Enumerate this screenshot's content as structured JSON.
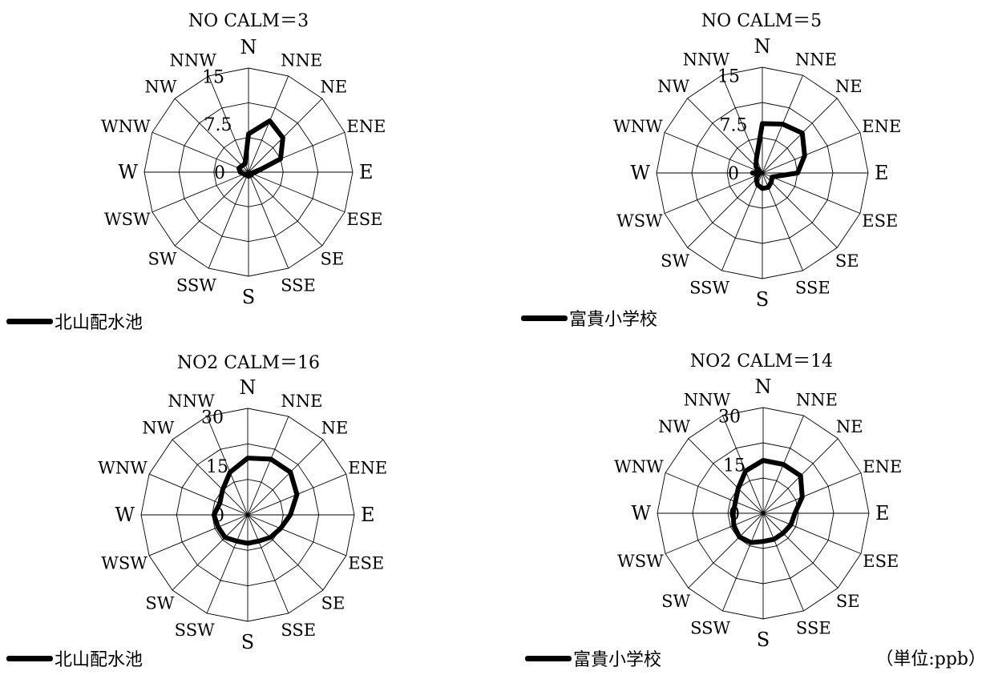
{
  "unit_label": "（単位:ppb）",
  "chart_data": [
    {
      "type": "radar",
      "title": "NO  CALM＝3",
      "legend": "北山配水池",
      "directions": [
        "N",
        "NNE",
        "NE",
        "ENE",
        "E",
        "ESE",
        "SE",
        "SSE",
        "S",
        "SSW",
        "SW",
        "WSW",
        "W",
        "WNW",
        "NW",
        "NNW"
      ],
      "ticks": [
        "0",
        "7.5",
        "15"
      ],
      "rmax": 15,
      "series": [
        {
          "name": "北山配水池",
          "values": [
            5.5,
            8.0,
            7.0,
            5.0,
            1.0,
            0.5,
            0.6,
            0.5,
            0.6,
            0.5,
            0.6,
            0.7,
            1.2,
            1.5,
            1.3,
            1.3
          ]
        }
      ]
    },
    {
      "type": "radar",
      "title": "NO  CALM＝5",
      "legend": "富貴小学校",
      "directions": [
        "N",
        "NNE",
        "NE",
        "ENE",
        "E",
        "ESE",
        "SE",
        "SSE",
        "S",
        "SSW",
        "SW",
        "WSW",
        "W",
        "WNW",
        "NW",
        "NNW"
      ],
      "ticks": [
        "0",
        "7.5",
        "15"
      ],
      "rmax": 15,
      "series": [
        {
          "name": "富貴小学校",
          "values": [
            7.0,
            7.5,
            8.0,
            6.5,
            5.0,
            1.5,
            1.8,
            2.2,
            2.2,
            1.8,
            1.2,
            0.6,
            1.4,
            0.4,
            1.3,
            2.2
          ]
        }
      ]
    },
    {
      "type": "radar",
      "title": "NO2  CALM＝16",
      "legend": "北山配水池",
      "directions": [
        "N",
        "NNE",
        "NE",
        "ENE",
        "E",
        "ESE",
        "SE",
        "SSE",
        "S",
        "SSW",
        "SW",
        "WSW",
        "W",
        "WNW",
        "NW",
        "NNW"
      ],
      "ticks": [
        "0",
        "15",
        "30"
      ],
      "rmax": 30,
      "series": [
        {
          "name": "北山配水池",
          "values": [
            16.0,
            17.0,
            17.0,
            15.0,
            12.0,
            10.0,
            9.0,
            8.0,
            8.0,
            8.0,
            9.0,
            9.0,
            9.5,
            8.5,
            10.0,
            13.0
          ]
        }
      ]
    },
    {
      "type": "radar",
      "title": "NO2  CALM＝14",
      "legend": "富貴小学校",
      "directions": [
        "N",
        "NNE",
        "NE",
        "ENE",
        "E",
        "ESE",
        "SE",
        "SSE",
        "S",
        "SSW",
        "SW",
        "WSW",
        "W",
        "WNW",
        "NW",
        "NNW"
      ],
      "ticks": [
        "0",
        "15",
        "30"
      ],
      "rmax": 30,
      "series": [
        {
          "name": "富貴小学校",
          "values": [
            15.0,
            15.0,
            15.0,
            12.0,
            9.0,
            8.5,
            8.0,
            8.0,
            8.0,
            9.0,
            9.5,
            9.0,
            8.5,
            8.5,
            10.0,
            13.0
          ]
        }
      ]
    }
  ]
}
